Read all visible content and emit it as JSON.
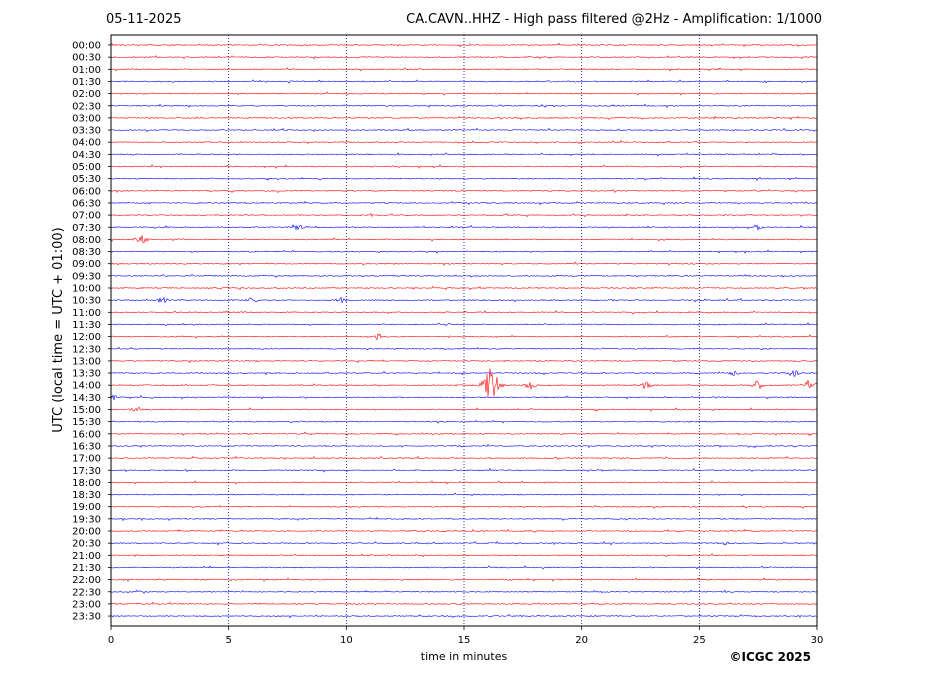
{
  "header": {
    "date": "05-11-2025",
    "title": "CA.CAVN..HHZ - High pass filtered @2Hz - Amplification: 1/1000"
  },
  "footer": {
    "copyright": "©ICGC 2025"
  },
  "colors": {
    "red_trace": "#ff0000",
    "blue_trace": "#0000ff",
    "grid": "#000080"
  },
  "chart_data": {
    "type": "line",
    "title": "CA.CAVN..HHZ - High pass filtered @2Hz - Amplification: 1/1000",
    "xlabel": "time in minutes",
    "ylabel": "UTC (local time = UTC + 01:00)",
    "xlim": [
      0,
      30
    ],
    "x_ticks": [
      0,
      5,
      10,
      15,
      20,
      25,
      30
    ],
    "grid": "vertical dotted at x ticks",
    "rows": [
      "00:00",
      "00:30",
      "01:00",
      "01:30",
      "02:00",
      "02:30",
      "03:00",
      "03:30",
      "04:00",
      "04:30",
      "05:00",
      "05:30",
      "06:00",
      "06:30",
      "07:00",
      "07:30",
      "08:00",
      "08:30",
      "09:00",
      "09:30",
      "10:00",
      "10:30",
      "11:00",
      "11:30",
      "12:00",
      "12:30",
      "13:00",
      "13:30",
      "14:00",
      "14:30",
      "15:00",
      "15:30",
      "16:00",
      "16:30",
      "17:00",
      "17:30",
      "18:00",
      "18:30",
      "19:00",
      "19:30",
      "20:00",
      "20:30",
      "21:00",
      "21:30",
      "22:00",
      "22:30",
      "23:00",
      "23:30"
    ],
    "row_colors": [
      "red",
      "red",
      "red",
      "blue",
      "red",
      "blue",
      "red",
      "blue",
      "red",
      "blue",
      "red",
      "blue",
      "red",
      "blue",
      "red",
      "blue",
      "red",
      "blue",
      "red",
      "blue",
      "red",
      "blue",
      "red",
      "blue",
      "red",
      "blue",
      "red",
      "blue",
      "red",
      "blue",
      "red",
      "blue",
      "red",
      "blue",
      "red",
      "blue",
      "red",
      "blue",
      "red",
      "blue",
      "red",
      "blue",
      "red",
      "blue",
      "red",
      "blue",
      "red",
      "blue"
    ],
    "events": [
      {
        "row": "07:30",
        "minute": 8.0,
        "amplitude": 0.25
      },
      {
        "row": "07:30",
        "minute": 27.5,
        "amplitude": 0.2
      },
      {
        "row": "08:00",
        "minute": 1.3,
        "amplitude": 0.35
      },
      {
        "row": "10:30",
        "minute": 2.2,
        "amplitude": 0.2
      },
      {
        "row": "10:30",
        "minute": 6.0,
        "amplitude": 0.2
      },
      {
        "row": "10:30",
        "minute": 9.8,
        "amplitude": 0.2
      },
      {
        "row": "12:00",
        "minute": 11.4,
        "amplitude": 0.2
      },
      {
        "row": "13:30",
        "minute": 26.5,
        "amplitude": 0.2
      },
      {
        "row": "13:30",
        "minute": 29.0,
        "amplitude": 0.25
      },
      {
        "row": "14:00",
        "minute": 16.15,
        "amplitude": 1.6
      },
      {
        "row": "14:00",
        "minute": 17.8,
        "amplitude": 0.35
      },
      {
        "row": "14:00",
        "minute": 22.7,
        "amplitude": 0.3
      },
      {
        "row": "14:00",
        "minute": 27.5,
        "amplitude": 0.35
      },
      {
        "row": "14:00",
        "minute": 29.7,
        "amplitude": 0.45
      },
      {
        "row": "14:30",
        "minute": 0.05,
        "amplitude": 0.25
      },
      {
        "row": "15:00",
        "minute": 1.1,
        "amplitude": 0.2
      },
      {
        "row": "20:30",
        "minute": 26.0,
        "amplitude": 0.15
      }
    ]
  }
}
